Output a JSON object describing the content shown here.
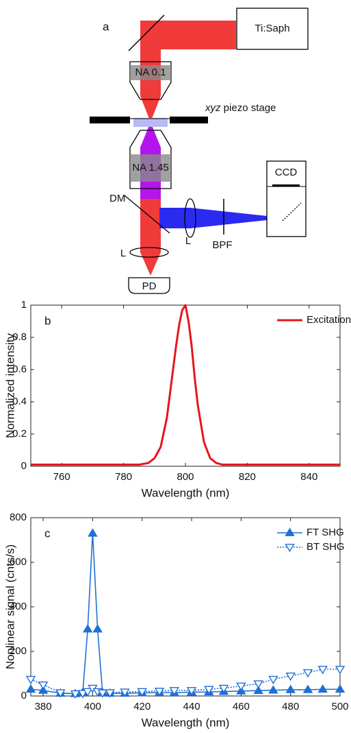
{
  "diagram": {
    "panel_label": "a",
    "laser": "Ti:Saph",
    "objective_top": "NA 0.1",
    "stage_axes": "xyz",
    "stage_label": "piezo stage",
    "objective_bottom": "NA 1.45",
    "dichroic": "DM",
    "lens_side": "L",
    "lens_bottom": "L",
    "filter": "BPF",
    "camera": "CCD",
    "detector": "PD"
  },
  "chart_data": [
    {
      "type": "line",
      "panel_label": "b",
      "xlabel": "Wavelength (nm)",
      "ylabel": "Normalized intensity",
      "x": [
        750,
        760,
        770,
        780,
        785,
        788,
        790,
        792,
        794,
        796,
        797,
        798,
        799,
        800,
        801,
        802,
        803,
        804,
        806,
        808,
        810,
        812,
        815,
        820,
        830,
        840,
        850
      ],
      "series": [
        {
          "name": "Excitation",
          "color": "#e8141b",
          "width": 3,
          "dash": "solid",
          "marker": "none",
          "values": [
            0.01,
            0.01,
            0.01,
            0.01,
            0.01,
            0.02,
            0.05,
            0.12,
            0.3,
            0.6,
            0.75,
            0.88,
            0.97,
            1,
            0.9,
            0.75,
            0.55,
            0.38,
            0.15,
            0.05,
            0.02,
            0.01,
            0.01,
            0.01,
            0.01,
            0.01,
            0.01
          ]
        }
      ],
      "xlim": [
        750,
        850
      ],
      "ylim": [
        0,
        1
      ],
      "xticks": [
        760,
        780,
        800,
        820,
        840
      ],
      "yticks": [
        0,
        0.2,
        0.4,
        0.6,
        0.8,
        1
      ],
      "legend": "upper right"
    },
    {
      "type": "line",
      "panel_label": "c",
      "xlabel": "Wavelength (nm)",
      "ylabel": "Nonlinear signal (cnts/s)",
      "x": [
        375,
        380,
        387,
        393,
        396,
        398,
        400,
        402,
        404,
        407,
        413,
        420,
        427,
        433,
        440,
        447,
        453,
        460,
        467,
        473,
        480,
        487,
        493,
        500
      ],
      "series": [
        {
          "name": "FT SHG",
          "color": "#1f6fd6",
          "width": 1.6,
          "dash": "solid",
          "marker": "up-filled",
          "values": [
            30,
            25,
            12,
            10,
            15,
            300,
            730,
            300,
            15,
            12,
            12,
            14,
            15,
            15,
            17,
            18,
            20,
            22,
            24,
            26,
            28,
            28,
            30,
            30
          ]
        },
        {
          "name": "BT SHG",
          "color": "#1f6fd6",
          "width": 1.6,
          "dash": "dotted",
          "marker": "down-open",
          "values": [
            75,
            50,
            15,
            10,
            12,
            20,
            35,
            20,
            14,
            15,
            18,
            20,
            22,
            25,
            25,
            30,
            35,
            45,
            55,
            75,
            90,
            105,
            120,
            120
          ]
        }
      ],
      "xlim": [
        375,
        500
      ],
      "ylim": [
        0,
        800
      ],
      "xticks": [
        380,
        400,
        420,
        440,
        460,
        480,
        500
      ],
      "yticks": [
        0,
        200,
        400,
        600,
        800
      ],
      "legend": "upper right"
    }
  ]
}
